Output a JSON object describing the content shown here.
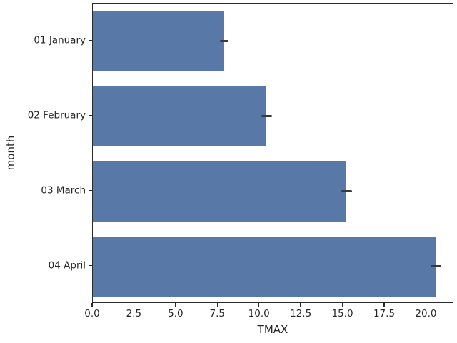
{
  "chart_data": {
    "type": "bar",
    "orientation": "horizontal",
    "title": "",
    "xlabel": "TMAX",
    "ylabel": "month",
    "categories": [
      "01 January",
      "02 February",
      "03 March",
      "04 April"
    ],
    "values": [
      7.85,
      10.35,
      15.15,
      20.6
    ],
    "error_bars": [
      [
        7.6,
        8.15
      ],
      [
        10.1,
        10.75
      ],
      [
        14.9,
        15.55
      ],
      [
        20.25,
        20.9
      ]
    ],
    "x_ticks": [
      0.0,
      2.5,
      5.0,
      7.5,
      10.0,
      12.5,
      15.0,
      17.5,
      20.0
    ],
    "x_tick_labels": [
      "0.0",
      "2.5",
      "5.0",
      "7.5",
      "10.0",
      "12.5",
      "15.0",
      "17.5",
      "20.0"
    ],
    "xlim": [
      0,
      21.65
    ],
    "grid": false,
    "legend": null,
    "bar_width_fraction": 0.8,
    "colors": {
      "bar": "#5878a8",
      "error": "#3a3a3a",
      "spine": "#2b2b2b",
      "text": "#262626",
      "background": "#ffffff"
    }
  }
}
